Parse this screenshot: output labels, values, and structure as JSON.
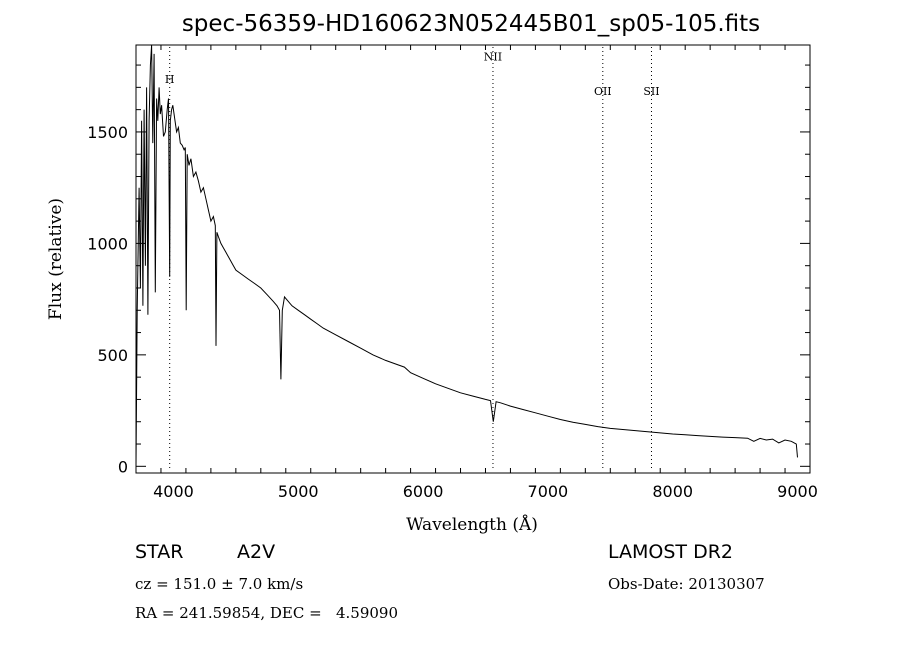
{
  "chart_data": {
    "type": "line",
    "title": "spec-56359-HD160623N052445B01_sp05-105.fits",
    "xlabel": "Wavelength (Å)",
    "ylabel": "Flux (relative)",
    "xlim": [
      3700,
      9100
    ],
    "ylim": [
      -30,
      1890
    ],
    "x_ticks": [
      4000,
      5000,
      6000,
      7000,
      8000,
      9000
    ],
    "y_ticks": [
      0,
      500,
      1000,
      1500
    ],
    "grid": false,
    "series": [
      {
        "x": [
          3700,
          3710,
          3725,
          3735,
          3745,
          3755,
          3765,
          3775,
          3785,
          3795,
          3805,
          3815,
          3825,
          3835,
          3845,
          3855,
          3865,
          3875,
          3885,
          3895,
          3905,
          3920,
          3935,
          3950,
          3960,
          3970,
          3975,
          3985,
          3995,
          4010,
          4025,
          4040,
          4055,
          4070,
          4085,
          4095,
          4102,
          4110,
          4125,
          4140,
          4160,
          4180,
          4200,
          4220,
          4240,
          4260,
          4280,
          4300,
          4320,
          4335,
          4341,
          4348,
          4360,
          4380,
          4400,
          4420,
          4440,
          4460,
          4480,
          4500,
          4550,
          4600,
          4650,
          4700,
          4750,
          4800,
          4830,
          4850,
          4861,
          4872,
          4890,
          4920,
          4950,
          5000,
          5050,
          5100,
          5150,
          5200,
          5300,
          5400,
          5500,
          5600,
          5700,
          5800,
          5850,
          5900,
          6000,
          6100,
          6200,
          6300,
          6400,
          6500,
          6540,
          6563,
          6585,
          6620,
          6700,
          6800,
          6900,
          7000,
          7100,
          7200,
          7300,
          7400,
          7500,
          7600,
          7700,
          7800,
          7900,
          8000,
          8100,
          8200,
          8300,
          8400,
          8500,
          8600,
          8650,
          8700,
          8750,
          8800,
          8850,
          8900,
          8950,
          8990,
          9000
        ],
        "y": [
          0,
          700,
          1250,
          800,
          1550,
          720,
          1600,
          900,
          1700,
          680,
          1550,
          1800,
          1900,
          1450,
          1850,
          780,
          1650,
          1550,
          1700,
          1580,
          1620,
          1480,
          1500,
          1600,
          1650,
          850,
          1550,
          1600,
          1620,
          1560,
          1500,
          1520,
          1450,
          1440,
          1420,
          1430,
          700,
          1400,
          1350,
          1380,
          1300,
          1320,
          1280,
          1230,
          1250,
          1200,
          1150,
          1100,
          1120,
          1080,
          540,
          1050,
          1030,
          1000,
          980,
          960,
          940,
          920,
          900,
          880,
          860,
          840,
          820,
          800,
          770,
          740,
          720,
          700,
          390,
          700,
          760,
          740,
          720,
          700,
          680,
          660,
          640,
          620,
          590,
          560,
          530,
          500,
          475,
          455,
          445,
          420,
          395,
          370,
          350,
          330,
          315,
          300,
          295,
          200,
          290,
          285,
          270,
          255,
          240,
          225,
          210,
          198,
          188,
          178,
          170,
          165,
          160,
          155,
          150,
          145,
          142,
          138,
          134,
          131,
          129,
          126,
          112,
          125,
          118,
          122,
          105,
          118,
          112,
          100,
          40
        ]
      }
    ],
    "line_markers": [
      {
        "label": "H",
        "x": 3970,
        "y": 1720
      },
      {
        "label": "NII",
        "x": 6560,
        "y": 1820
      },
      {
        "label": "OII",
        "x": 7440,
        "y": 1665
      },
      {
        "label": "SII",
        "x": 7830,
        "y": 1665
      }
    ]
  },
  "info": {
    "object_class": "STAR",
    "subclass": "A2V",
    "survey": "LAMOST DR2",
    "redshift": "cz = 151.0 ± 7.0 km/s",
    "obs_date": "Obs-Date: 20130307",
    "coords": "RA = 241.59854, DEC =   4.59090"
  }
}
